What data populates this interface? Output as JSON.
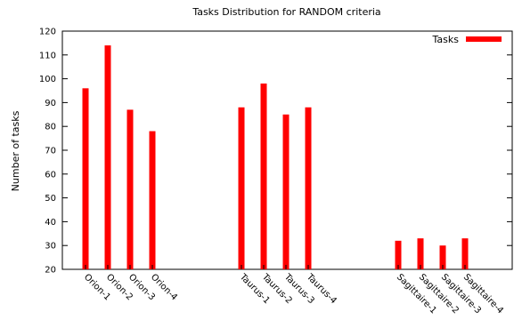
{
  "chart_data": {
    "type": "bar",
    "title": "Tasks Distribution for RANDOM criteria",
    "xlabel": "",
    "ylabel": "Number of tasks",
    "ylim": [
      20,
      120
    ],
    "yticks": [
      20,
      30,
      40,
      50,
      60,
      70,
      80,
      90,
      100,
      110,
      120
    ],
    "grid": false,
    "legend_position": "top-right",
    "categories": [
      "Orion-1",
      "Orion-2",
      "Orion-3",
      "Orion-4",
      "Taurus-1",
      "Taurus-2",
      "Taurus-3",
      "Taurus-4",
      "Sagittaire-1",
      "Sagittaire-2",
      "Sagittaire-3",
      "Sagittaire-4"
    ],
    "series": [
      {
        "name": "Tasks",
        "color": "#ff0000",
        "values": [
          96,
          114,
          87,
          78,
          88,
          98,
          85,
          88,
          32,
          33,
          30,
          33
        ]
      }
    ]
  }
}
